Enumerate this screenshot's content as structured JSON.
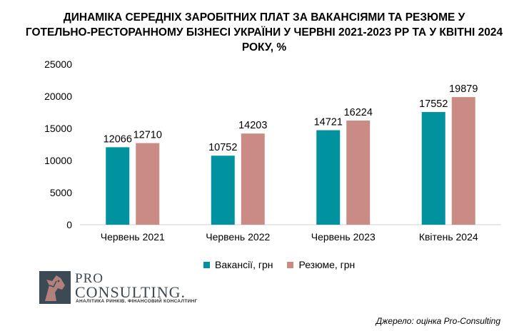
{
  "title": {
    "line1": "ДИНАМІКА СЕРЕДНІХ ЗАРОБІТНИХ ПЛАТ ЗА ВАКАНСІЯМИ ТА РЕЗЮМЕ У",
    "line2": "ГОТЕЛЬНО-РЕСТОРАННОМУ БІЗНЕСІ УКРАЇНИ У ЧЕРВНІ 2021-2023 РР ТА У КВІТНІ 2024 РОКУ, %"
  },
  "chart_data": {
    "type": "bar",
    "categories": [
      "Червень 2021",
      "Червень 2022",
      "Червень 2023",
      "Квітень 2024"
    ],
    "series": [
      {
        "name": "Вакансії, грн",
        "values": [
          12066,
          10752,
          14721,
          17552
        ],
        "color": "#00929f"
      },
      {
        "name": "Резюме, грн",
        "values": [
          12710,
          14203,
          16224,
          19879
        ],
        "color": "#c98b84"
      }
    ],
    "ylim": [
      0,
      25000
    ],
    "yticks": [
      0,
      5000,
      10000,
      15000,
      20000,
      25000
    ],
    "grid": false,
    "legend": "bottom"
  },
  "logo": {
    "pro": "PRO",
    "consulting": "CONSULTING.",
    "tagline": "АНАЛІТИКА РИНКІВ. ФІНАНСОВИЙ КОНСАЛТИНГ",
    "colors": {
      "dark": "#3b4a55",
      "accent": "#c98b84"
    }
  },
  "source": "Джерело: оцінка Pro-Consulting"
}
